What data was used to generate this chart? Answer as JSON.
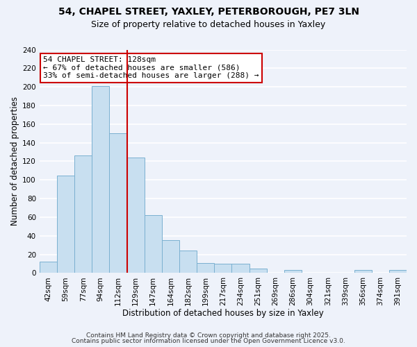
{
  "title": "54, CHAPEL STREET, YAXLEY, PETERBOROUGH, PE7 3LN",
  "subtitle": "Size of property relative to detached houses in Yaxley",
  "xlabel": "Distribution of detached houses by size in Yaxley",
  "ylabel": "Number of detached properties",
  "bar_color": "#c8dff0",
  "bar_edge_color": "#7ab0d0",
  "background_color": "#eef2fa",
  "grid_color": "white",
  "categories": [
    "42sqm",
    "59sqm",
    "77sqm",
    "94sqm",
    "112sqm",
    "129sqm",
    "147sqm",
    "164sqm",
    "182sqm",
    "199sqm",
    "217sqm",
    "234sqm",
    "251sqm",
    "269sqm",
    "286sqm",
    "304sqm",
    "321sqm",
    "339sqm",
    "356sqm",
    "374sqm",
    "391sqm"
  ],
  "values": [
    12,
    105,
    126,
    201,
    150,
    124,
    62,
    35,
    24,
    11,
    10,
    10,
    5,
    0,
    3,
    0,
    0,
    0,
    3,
    0,
    3
  ],
  "vline_index": 4.5,
  "vline_color": "#cc0000",
  "annotation_title": "54 CHAPEL STREET: 128sqm",
  "annotation_line1": "← 67% of detached houses are smaller (586)",
  "annotation_line2": "33% of semi-detached houses are larger (288) →",
  "annotation_box_color": "white",
  "annotation_box_edge_color": "#cc0000",
  "ylim": [
    0,
    240
  ],
  "yticks": [
    0,
    20,
    40,
    60,
    80,
    100,
    120,
    140,
    160,
    180,
    200,
    220,
    240
  ],
  "footer_line1": "Contains HM Land Registry data © Crown copyright and database right 2025.",
  "footer_line2": "Contains public sector information licensed under the Open Government Licence v3.0.",
  "title_fontsize": 10,
  "subtitle_fontsize": 9,
  "axis_label_fontsize": 8.5,
  "tick_fontsize": 7.5,
  "annotation_title_fontsize": 8,
  "annotation_body_fontsize": 8,
  "footer_fontsize": 6.5
}
